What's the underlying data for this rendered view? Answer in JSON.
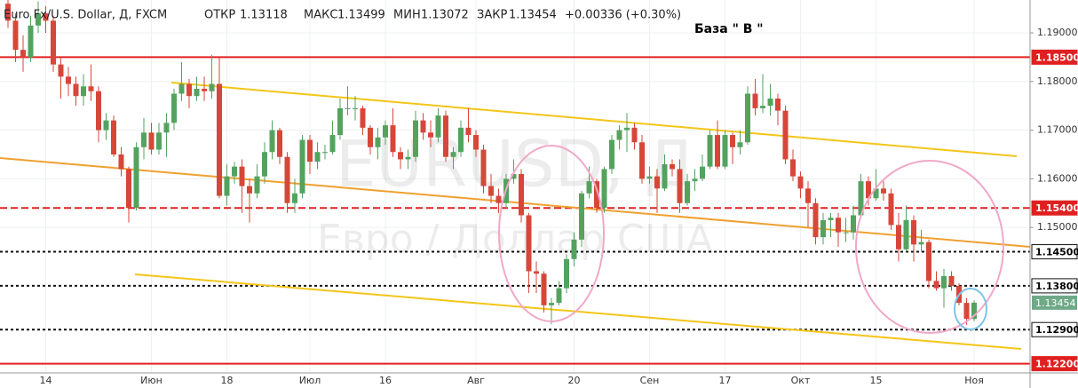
{
  "chart_data": {
    "type": "candlestick",
    "title": "Euro Fx/U.S. Dollar, Д, FXCM",
    "ohlc_labels": {
      "open": "ОТКР",
      "high": "МАКС",
      "low": "МИН",
      "close": "ЗАКР"
    },
    "change_label": "+0.00336 (+0.30%)",
    "annotation": "База \" В \"",
    "watermark": [
      "EURUSD, Д",
      "Евро / Доллар США"
    ],
    "categories": [
      null,
      null,
      null,
      null,
      null,
      "14",
      null,
      null,
      null,
      null,
      null,
      null,
      null,
      null,
      null,
      null,
      null,
      null,
      null,
      "Июн",
      null,
      null,
      null,
      null,
      null,
      null,
      null,
      null,
      null,
      "18",
      null,
      null,
      null,
      null,
      null,
      null,
      null,
      null,
      null,
      null,
      "Июл",
      null,
      null,
      null,
      null,
      null,
      null,
      null,
      null,
      null,
      "16",
      null,
      null,
      null,
      null,
      null,
      null,
      null,
      null,
      null,
      null,
      null,
      "Авг",
      null,
      null,
      null,
      null,
      null,
      null,
      null,
      null,
      null,
      null,
      null,
      null,
      "20",
      null,
      null,
      null,
      null,
      null,
      null,
      null,
      null,
      null,
      "Сен",
      null,
      null,
      null,
      null,
      null,
      null,
      null,
      null,
      null,
      "17",
      null,
      null,
      null,
      null,
      null,
      null,
      null,
      null,
      null,
      "Окт",
      null,
      null,
      null,
      null,
      null,
      null,
      null,
      null,
      null,
      "15",
      null,
      null,
      null,
      null,
      null,
      null,
      null,
      null,
      null,
      null,
      null,
      null,
      "Ноя"
    ],
    "open": [
      1.196,
      1.1925,
      1.1865,
      1.185,
      1.1915,
      1.194,
      1.1925,
      1.1835,
      1.181,
      1.1795,
      1.177,
      1.179,
      1.178,
      1.17,
      1.172,
      1.165,
      1.162,
      1.154,
      1.1665,
      1.1695,
      1.166,
      1.1695,
      1.1715,
      1.1775,
      1.1795,
      1.177,
      1.1785,
      1.178,
      1.1795,
      1.1565,
      1.1605,
      1.1625,
      1.1585,
      1.157,
      1.1605,
      1.1655,
      1.17,
      1.1645,
      1.155,
      1.157,
      1.168,
      1.1635,
      1.1655,
      1.1655,
      1.169,
      1.1745,
      1.1745,
      1.1745,
      1.1705,
      1.1665,
      1.1685,
      1.171,
      1.1655,
      1.164,
      1.1645,
      1.172,
      1.1695,
      1.1685,
      1.173,
      1.1645,
      1.1655,
      1.1705,
      1.169,
      1.166,
      1.1585,
      1.1565,
      1.155,
      1.16,
      1.161,
      1.1525,
      1.141,
      1.1405,
      1.134,
      1.1345,
      1.1375,
      1.1435,
      1.1475,
      1.157,
      1.1595,
      1.154,
      1.162,
      1.168,
      1.17,
      1.1705,
      1.1675,
      1.16,
      1.1605,
      1.158,
      1.163,
      1.162,
      1.155,
      1.1595,
      1.16,
      1.1625,
      1.169,
      1.1625,
      1.169,
      1.1665,
      1.1675,
      1.1775,
      1.1745,
      1.175,
      1.1765,
      1.174,
      1.164,
      1.1605,
      1.158,
      1.155,
      1.148,
      1.1515,
      1.152,
      1.149,
      1.149,
      1.1525,
      1.1595,
      1.156,
      1.158,
      1.157,
      1.1505,
      1.1455,
      1.1515,
      1.1465,
      1.147,
      1.139,
      1.1375,
      1.14,
      1.138,
      1.1345,
      1.13118
    ],
    "high": [
      1.1975,
      1.194,
      1.1895,
      1.1935,
      1.1965,
      1.1955,
      1.1935,
      1.185,
      1.183,
      1.181,
      1.1815,
      1.1835,
      1.179,
      1.1735,
      1.173,
      1.1665,
      1.1625,
      1.1675,
      1.1725,
      1.1715,
      1.1715,
      1.1735,
      1.1785,
      1.184,
      1.1805,
      1.181,
      1.181,
      1.1855,
      1.185,
      1.163,
      1.1635,
      1.164,
      1.16,
      1.163,
      1.1675,
      1.172,
      1.1705,
      1.1655,
      1.16,
      1.169,
      1.169,
      1.1675,
      1.167,
      1.172,
      1.1765,
      1.179,
      1.177,
      1.175,
      1.171,
      1.1705,
      1.172,
      1.1745,
      1.1665,
      1.166,
      1.174,
      1.1735,
      1.172,
      1.1745,
      1.174,
      1.1665,
      1.172,
      1.1745,
      1.17,
      1.167,
      1.161,
      1.158,
      1.161,
      1.164,
      1.162,
      1.153,
      1.143,
      1.141,
      1.1355,
      1.139,
      1.1445,
      1.149,
      1.1575,
      1.1625,
      1.16,
      1.1625,
      1.169,
      1.171,
      1.1735,
      1.1715,
      1.169,
      1.1625,
      1.162,
      1.165,
      1.164,
      1.164,
      1.161,
      1.162,
      1.165,
      1.17,
      1.172,
      1.17,
      1.1695,
      1.17,
      1.179,
      1.1805,
      1.1815,
      1.1795,
      1.1775,
      1.175,
      1.166,
      1.1615,
      1.1595,
      1.156,
      1.153,
      1.153,
      1.153,
      1.152,
      1.1545,
      1.161,
      1.1605,
      1.162,
      1.1595,
      1.158,
      1.153,
      1.1545,
      1.1525,
      1.1495,
      1.1475,
      1.141,
      1.1415,
      1.141,
      1.1385,
      1.1355,
      1.13499
    ],
    "low": [
      1.191,
      1.184,
      1.182,
      1.184,
      1.19,
      1.19,
      1.182,
      1.1765,
      1.177,
      1.175,
      1.175,
      1.176,
      1.1675,
      1.168,
      1.1645,
      1.1605,
      1.151,
      1.1535,
      1.164,
      1.165,
      1.165,
      1.1645,
      1.17,
      1.176,
      1.1745,
      1.176,
      1.176,
      1.1765,
      1.156,
      1.1545,
      1.159,
      1.153,
      1.151,
      1.156,
      1.159,
      1.164,
      1.163,
      1.153,
      1.153,
      1.156,
      1.161,
      1.162,
      1.164,
      1.165,
      1.168,
      1.173,
      1.172,
      1.169,
      1.165,
      1.164,
      1.167,
      1.1645,
      1.162,
      1.162,
      1.1635,
      1.168,
      1.1665,
      1.1675,
      1.1635,
      1.162,
      1.1645,
      1.1675,
      1.1645,
      1.157,
      1.155,
      1.153,
      1.154,
      1.159,
      1.151,
      1.1365,
      1.1365,
      1.1325,
      1.1301,
      1.134,
      1.1365,
      1.142,
      1.146,
      1.156,
      1.153,
      1.153,
      1.161,
      1.166,
      1.1655,
      1.166,
      1.159,
      1.159,
      1.153,
      1.1575,
      1.1605,
      1.153,
      1.1545,
      1.1575,
      1.1595,
      1.162,
      1.162,
      1.162,
      1.163,
      1.165,
      1.167,
      1.173,
      1.1735,
      1.173,
      1.171,
      1.163,
      1.1595,
      1.156,
      1.15,
      1.1465,
      1.1465,
      1.148,
      1.146,
      1.147,
      1.1475,
      1.152,
      1.1545,
      1.1555,
      1.1555,
      1.1495,
      1.143,
      1.145,
      1.143,
      1.145,
      1.1375,
      1.137,
      1.1335,
      1.137,
      1.134,
      1.13,
      1.13072
    ],
    "close": [
      1.1925,
      1.1865,
      1.185,
      1.1915,
      1.194,
      1.1925,
      1.1835,
      1.181,
      1.1795,
      1.177,
      1.179,
      1.178,
      1.17,
      1.172,
      1.165,
      1.162,
      1.154,
      1.1665,
      1.1695,
      1.166,
      1.1695,
      1.1715,
      1.1775,
      1.1795,
      1.177,
      1.1785,
      1.178,
      1.1795,
      1.1565,
      1.1605,
      1.1625,
      1.1585,
      1.157,
      1.1605,
      1.1655,
      1.17,
      1.1645,
      1.155,
      1.157,
      1.168,
      1.1635,
      1.1655,
      1.1655,
      1.169,
      1.1745,
      1.1745,
      1.1745,
      1.1705,
      1.1665,
      1.1685,
      1.171,
      1.1655,
      1.164,
      1.1645,
      1.172,
      1.1695,
      1.1685,
      1.173,
      1.1645,
      1.1655,
      1.1705,
      1.169,
      1.166,
      1.1585,
      1.1565,
      1.155,
      1.16,
      1.161,
      1.1525,
      1.141,
      1.1405,
      1.134,
      1.1345,
      1.1375,
      1.1435,
      1.1475,
      1.157,
      1.1595,
      1.154,
      1.162,
      1.168,
      1.17,
      1.1705,
      1.1675,
      1.16,
      1.1605,
      1.158,
      1.163,
      1.162,
      1.155,
      1.1595,
      1.16,
      1.1625,
      1.169,
      1.1625,
      1.169,
      1.1665,
      1.1675,
      1.1775,
      1.1745,
      1.175,
      1.1765,
      1.174,
      1.164,
      1.1605,
      1.158,
      1.155,
      1.148,
      1.1515,
      1.152,
      1.149,
      1.149,
      1.1525,
      1.1595,
      1.156,
      1.158,
      1.157,
      1.1505,
      1.1455,
      1.1515,
      1.1465,
      1.147,
      1.139,
      1.1375,
      1.14,
      1.138,
      1.1345,
      1.1312,
      1.13454
    ],
    "up_color": "#53a35f",
    "down_color": "#d6473a",
    "last_color": "#6fa987",
    "ylim": [
      1.1201,
      1.19675
    ],
    "yticks": [
      {
        "value": 1.19,
        "label": "1.19000"
      },
      {
        "value": 1.18,
        "label": "1.18000"
      },
      {
        "value": 1.17,
        "label": "1.17000"
      },
      {
        "value": 1.16,
        "label": "1.16000"
      },
      {
        "value": 1.15,
        "label": "1.15000"
      }
    ],
    "grid": true,
    "levels": [
      {
        "value": 1.185,
        "label": "1.18500",
        "color": "#e02020",
        "style": "solid"
      },
      {
        "value": 1.154,
        "label": "1.15400",
        "color": "#e02020",
        "style": "dashed"
      },
      {
        "value": 1.145,
        "label": "1.14500",
        "color": "#111111",
        "style": "dotted"
      },
      {
        "value": 1.138,
        "label": "1.13800",
        "color": "#111111",
        "style": "dotted"
      },
      {
        "value": 1.129,
        "label": "1.12900",
        "color": "#111111",
        "style": "dotted"
      },
      {
        "value": 1.122,
        "label": "1.12200",
        "color": "#e02020",
        "style": "solid"
      }
    ]
  }
}
